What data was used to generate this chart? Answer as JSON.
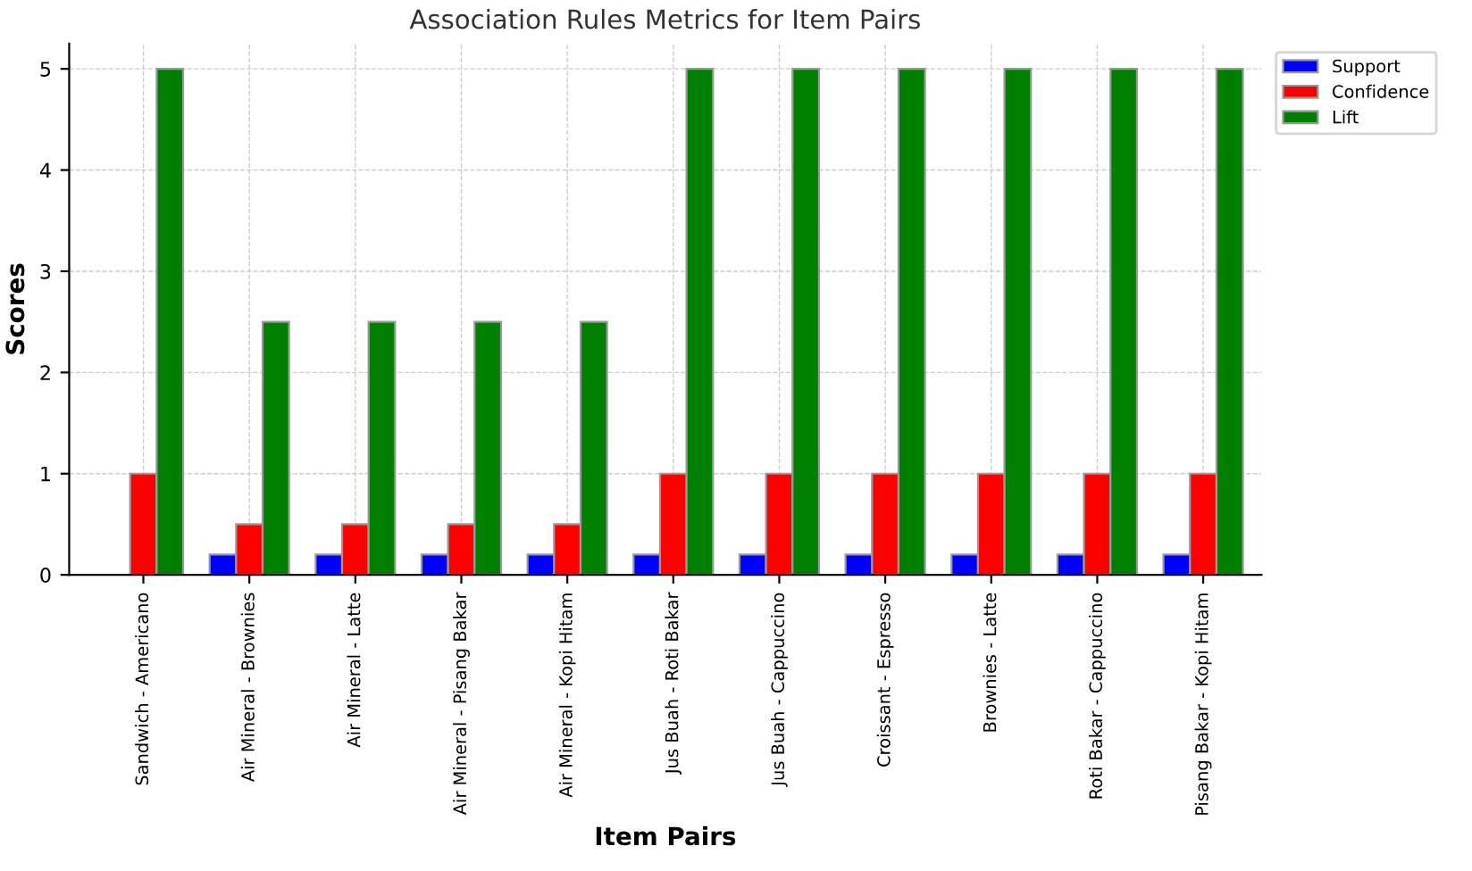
{
  "chart_data": {
    "type": "bar",
    "title": "Association Rules Metrics for Item Pairs",
    "xlabel": "Item Pairs",
    "ylabel": "Scores",
    "categories": [
      "Sandwich - Americano",
      "Air Mineral - Brownies",
      "Air Mineral - Latte",
      "Air Mineral - Pisang Bakar",
      "Air Mineral - Kopi Hitam",
      "Jus Buah - Roti Bakar",
      "Jus Buah - Cappuccino",
      "Croissant - Espresso",
      "Brownies - Latte",
      "Roti Bakar - Cappuccino",
      "Pisang Bakar - Kopi Hitam"
    ],
    "series": [
      {
        "name": "Support",
        "color": "#0000ff",
        "values": [
          null,
          0.2,
          0.2,
          0.2,
          0.2,
          0.2,
          0.2,
          0.2,
          0.2,
          0.2,
          0.2
        ]
      },
      {
        "name": "Confidence",
        "color": "#ff0000",
        "values": [
          1,
          0.5,
          0.5,
          0.5,
          0.5,
          1,
          1,
          1,
          1,
          1,
          1
        ]
      },
      {
        "name": "Lift",
        "color": "#008000",
        "values": [
          5,
          2.5,
          2.5,
          2.5,
          2.5,
          5,
          5,
          5,
          5,
          5,
          5
        ]
      }
    ],
    "ylim": [
      0,
      5.25
    ],
    "yticks": [
      0,
      1,
      2,
      3,
      4,
      5
    ],
    "grid": true,
    "legend": "top right"
  }
}
